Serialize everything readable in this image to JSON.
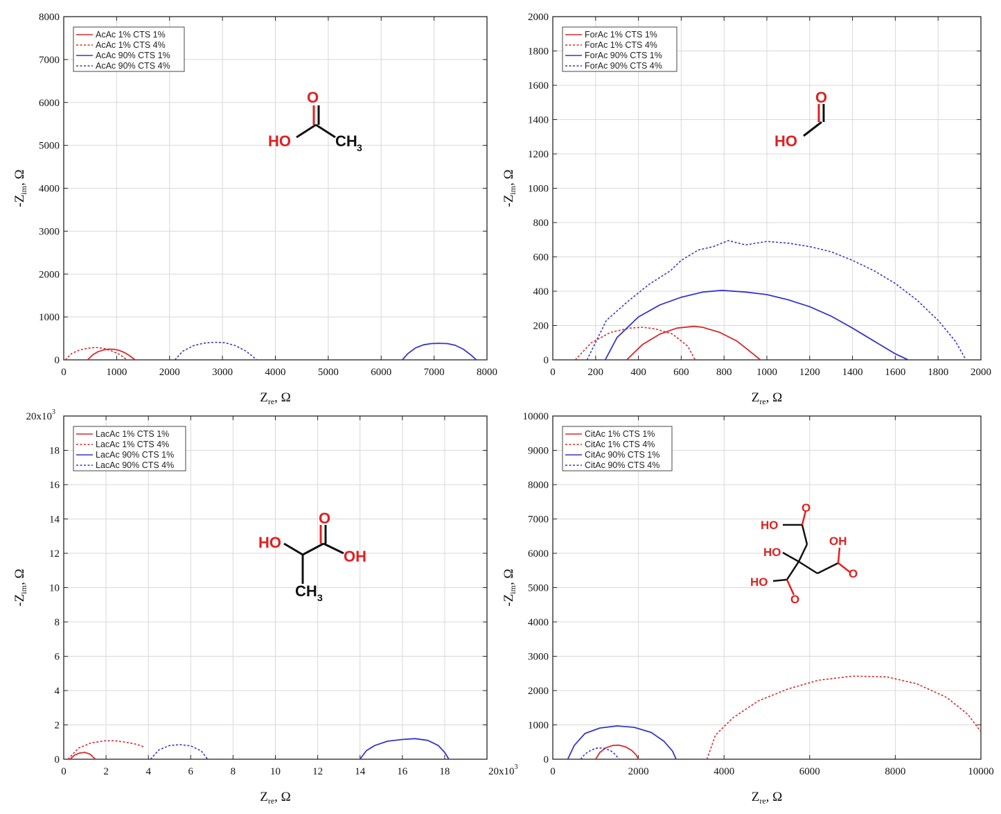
{
  "chart_data": [
    {
      "type": "line",
      "xlabel": "Z",
      "xlabel_sub": "re",
      "ylabel": "-Z",
      "ylabel_sub": "im",
      "unit": ", Ω",
      "xlim": [
        0,
        8000
      ],
      "ylim": [
        0,
        8000
      ],
      "xticks": [
        "0",
        "1000",
        "2000",
        "3000",
        "4000",
        "5000",
        "6000",
        "7000",
        "8000"
      ],
      "yticks": [
        "0",
        "1000",
        "2000",
        "3000",
        "4000",
        "5000",
        "6000",
        "7000",
        "8000"
      ],
      "grid": true,
      "legend_position": "top-left",
      "series": [
        {
          "name": "AcAc 1% CTS 1%",
          "color": "#d42a2a",
          "style": "solid",
          "x": [
            450,
            550,
            650,
            750,
            850,
            950,
            1050,
            1150,
            1250,
            1350
          ],
          "y": [
            0,
            120,
            190,
            230,
            250,
            245,
            220,
            170,
            90,
            0
          ]
        },
        {
          "name": "AcAc 1% CTS 4%",
          "color": "#d42a2a",
          "style": "dotted",
          "x": [
            30,
            150,
            300,
            450,
            600,
            750,
            900,
            1050,
            1200
          ],
          "y": [
            0,
            150,
            230,
            270,
            290,
            270,
            210,
            130,
            0
          ]
        },
        {
          "name": "AcAc 90% CTS 1%",
          "color": "#3535c8",
          "style": "solid",
          "x": [
            6400,
            6500,
            6650,
            6800,
            6950,
            7100,
            7250,
            7400,
            7550,
            7700,
            7800
          ],
          "y": [
            0,
            140,
            280,
            350,
            380,
            385,
            380,
            340,
            250,
            110,
            0
          ]
        },
        {
          "name": "AcAc 90% CTS 4%",
          "color": "#3535c8",
          "style": "dotted",
          "x": [
            2100,
            2250,
            2450,
            2650,
            2850,
            3050,
            3250,
            3450,
            3650
          ],
          "y": [
            0,
            200,
            330,
            390,
            410,
            400,
            330,
            200,
            0
          ]
        }
      ]
    },
    {
      "type": "line",
      "xlabel": "Z",
      "xlabel_sub": "re",
      "ylabel": "-Z",
      "ylabel_sub": "im",
      "unit": ", Ω",
      "xlim": [
        0,
        2000
      ],
      "ylim": [
        0,
        2000
      ],
      "xticks": [
        "0",
        "200",
        "400",
        "600",
        "800",
        "1000",
        "1200",
        "1400",
        "1600",
        "1800",
        "2000"
      ],
      "yticks": [
        "0",
        "200",
        "400",
        "600",
        "800",
        "1000",
        "1200",
        "1400",
        "1600",
        "1800",
        "2000"
      ],
      "grid": true,
      "legend_position": "top-left",
      "series": [
        {
          "name": "ForAc 1% CTS 1%",
          "color": "#d42a2a",
          "style": "solid",
          "x": [
            345,
            420,
            500,
            580,
            660,
            700,
            780,
            860,
            930,
            970
          ],
          "y": [
            0,
            90,
            150,
            185,
            195,
            190,
            160,
            110,
            40,
            0
          ]
        },
        {
          "name": "ForAc 1% CTS 4%",
          "color": "#d42a2a",
          "style": "dotted",
          "x": [
            105,
            180,
            270,
            360,
            420,
            480,
            560,
            630,
            665
          ],
          "y": [
            0,
            100,
            160,
            185,
            190,
            180,
            150,
            80,
            0
          ]
        },
        {
          "name": "ForAc 90% CTS 1%",
          "color": "#3535c8",
          "style": "solid",
          "x": [
            245,
            300,
            400,
            500,
            600,
            700,
            790,
            900,
            1000,
            1100,
            1200,
            1300,
            1400,
            1500,
            1600,
            1660
          ],
          "y": [
            0,
            130,
            250,
            320,
            365,
            395,
            405,
            395,
            380,
            350,
            310,
            255,
            185,
            110,
            35,
            0
          ]
        },
        {
          "name": "ForAc 90% CTS 4%",
          "color": "#3535c8",
          "style": "dotted",
          "x": [
            160,
            250,
            350,
            450,
            550,
            600,
            680,
            750,
            820,
            900,
            1000,
            1100,
            1200,
            1300,
            1400,
            1500,
            1600,
            1700,
            1800,
            1880,
            1930
          ],
          "y": [
            0,
            230,
            340,
            440,
            520,
            580,
            640,
            660,
            695,
            670,
            690,
            680,
            660,
            630,
            580,
            520,
            445,
            350,
            230,
            110,
            0
          ]
        }
      ]
    },
    {
      "type": "line",
      "xlabel": "Z",
      "xlabel_sub": "re",
      "ylabel": "-Z",
      "ylabel_sub": "im",
      "unit": ", Ω",
      "scale_label": "20x10",
      "scale_exp": "3",
      "xlim": [
        0,
        20000
      ],
      "ylim": [
        0,
        20000
      ],
      "xticks": [
        "0",
        "2",
        "4",
        "6",
        "8",
        "10",
        "12",
        "14",
        "16",
        "18",
        "20x10"
      ],
      "yticks": [
        "0",
        "2",
        "4",
        "6",
        "8",
        "10",
        "12",
        "14",
        "16",
        "18",
        "20x10"
      ],
      "grid": true,
      "legend_position": "top-left",
      "series": [
        {
          "name": "LacAc 1% CTS 1%",
          "color": "#d42a2a",
          "style": "solid",
          "x": [
            300,
            500,
            750,
            1000,
            1250,
            1500
          ],
          "y": [
            0,
            230,
            360,
            400,
            290,
            0
          ]
        },
        {
          "name": "LacAc 1% CTS 4%",
          "color": "#d42a2a",
          "style": "dotted",
          "x": [
            200,
            700,
            1300,
            1900,
            2400,
            2900,
            3400,
            3800
          ],
          "y": [
            0,
            650,
            950,
            1070,
            1080,
            1000,
            880,
            720
          ]
        },
        {
          "name": "LacAc 90% CTS 1%",
          "color": "#3535c8",
          "style": "solid",
          "x": [
            14000,
            14300,
            14700,
            15300,
            16000,
            16600,
            17200,
            17700,
            18000,
            18200
          ],
          "y": [
            0,
            500,
            800,
            1050,
            1150,
            1200,
            1100,
            800,
            400,
            0
          ]
        },
        {
          "name": "LacAc 90% CTS 4%",
          "color": "#3535c8",
          "style": "dotted",
          "x": [
            4100,
            4500,
            5000,
            5500,
            6000,
            6500,
            6800
          ],
          "y": [
            0,
            550,
            800,
            850,
            780,
            480,
            0
          ]
        }
      ]
    },
    {
      "type": "line",
      "xlabel": "Z",
      "xlabel_sub": "re",
      "ylabel": "-Z",
      "ylabel_sub": "im",
      "unit": ", Ω",
      "xlim": [
        0,
        10000
      ],
      "ylim": [
        0,
        10000
      ],
      "xticks": [
        "0",
        "2000",
        "4000",
        "6000",
        "8000",
        "10000"
      ],
      "yticks": [
        "0",
        "1000",
        "2000",
        "3000",
        "4000",
        "5000",
        "6000",
        "7000",
        "8000",
        "9000",
        "10000"
      ],
      "grid": true,
      "legend_position": "top-left",
      "series": [
        {
          "name": "CitAc 1% CTS 1%",
          "color": "#d42a2a",
          "style": "solid",
          "x": [
            1000,
            1100,
            1250,
            1400,
            1550,
            1700,
            1850,
            1950,
            2000
          ],
          "y": [
            0,
            200,
            340,
            400,
            410,
            360,
            250,
            120,
            0
          ]
        },
        {
          "name": "CitAc 1% CTS 4%",
          "color": "#d42a2a",
          "style": "dotted",
          "x": [
            3600,
            3800,
            4200,
            4800,
            5500,
            6200,
            7000,
            7800,
            8500,
            9200,
            9700,
            10000
          ],
          "y": [
            0,
            700,
            1200,
            1700,
            2050,
            2300,
            2420,
            2400,
            2200,
            1800,
            1300,
            800
          ]
        },
        {
          "name": "CitAc 90% CTS 1%",
          "color": "#3535c8",
          "style": "solid",
          "x": [
            350,
            500,
            750,
            1100,
            1500,
            1900,
            2300,
            2600,
            2800,
            2880
          ],
          "y": [
            0,
            400,
            750,
            910,
            970,
            930,
            780,
            520,
            230,
            0
          ]
        },
        {
          "name": "CitAc 90% CTS 4%",
          "color": "#3535c8",
          "style": "dotted",
          "x": [
            650,
            750,
            900,
            1050,
            1200,
            1350,
            1450,
            1550
          ],
          "y": [
            0,
            150,
            270,
            330,
            320,
            250,
            150,
            0
          ]
        }
      ]
    }
  ]
}
